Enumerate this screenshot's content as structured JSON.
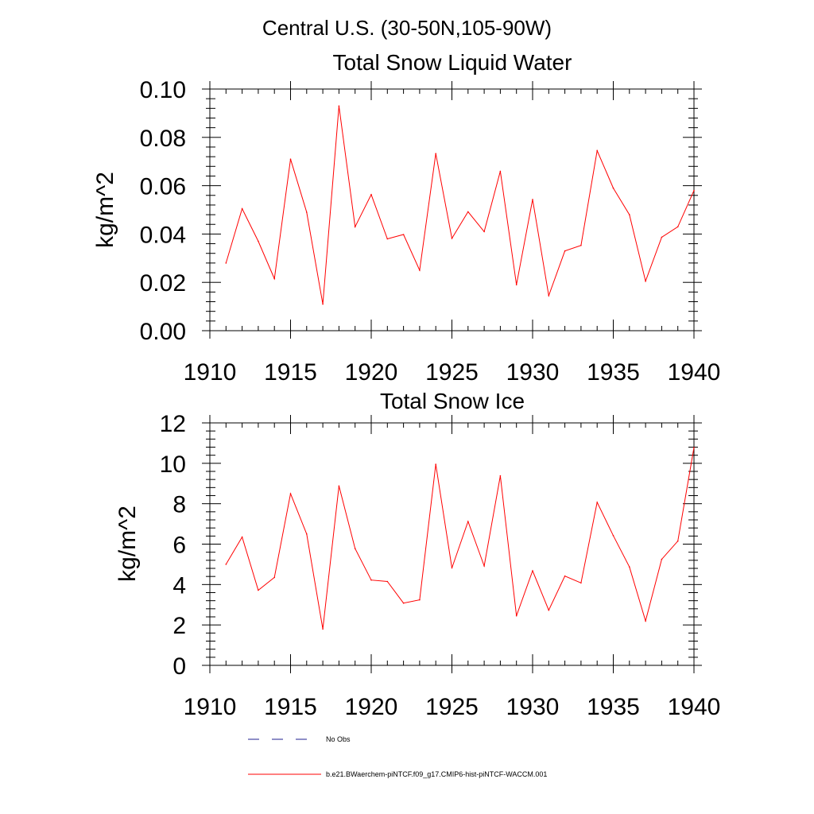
{
  "header": {
    "title": "Central U.S. (30-50N,105-90W)"
  },
  "legend": {
    "entries": [
      {
        "label": "No Obs",
        "color": "#1f1f8f",
        "style": "dashed"
      },
      {
        "label": "b.e21.BWaerchem-piNTCF.f09_g17.CMIP6-hist-piNTCF-WACCM.001",
        "color": "#ff0000",
        "style": "solid"
      }
    ]
  },
  "chart_data": [
    {
      "type": "line",
      "title": "Total Snow Liquid Water",
      "xlabel": "",
      "ylabel": "kg/m^2",
      "xlim": [
        1910,
        1940
      ],
      "ylim": [
        0,
        0.1
      ],
      "xticks": [
        1910,
        1915,
        1920,
        1925,
        1930,
        1935,
        1940
      ],
      "yticks": [
        0.0,
        0.02,
        0.04,
        0.06,
        0.08,
        0.1
      ],
      "ytick_labels": [
        "0.00",
        "0.02",
        "0.04",
        "0.06",
        "0.08",
        "0.10"
      ],
      "grid": false,
      "x": [
        1911,
        1912,
        1913,
        1914,
        1915,
        1916,
        1917,
        1918,
        1919,
        1920,
        1921,
        1922,
        1923,
        1924,
        1925,
        1926,
        1927,
        1928,
        1929,
        1930,
        1931,
        1932,
        1933,
        1934,
        1935,
        1936,
        1937,
        1938,
        1939,
        1940
      ],
      "series": [
        {
          "name": "b.e21.BWaerchem-piNTCF.f09_g17.CMIP6-hist-piNTCF-WACCM.001",
          "color": "#ff0000",
          "values": [
            0.028,
            0.0505,
            0.037,
            0.0215,
            0.071,
            0.049,
            0.011,
            0.093,
            0.043,
            0.0563,
            0.038,
            0.0398,
            0.025,
            0.0733,
            0.0382,
            0.0492,
            0.041,
            0.066,
            0.019,
            0.0543,
            0.0145,
            0.033,
            0.0353,
            0.0745,
            0.059,
            0.048,
            0.0205,
            0.0387,
            0.043,
            0.058
          ]
        }
      ]
    },
    {
      "type": "line",
      "title": "Total Snow Ice",
      "xlabel": "",
      "ylabel": "kg/m^2",
      "xlim": [
        1910,
        1940
      ],
      "ylim": [
        0,
        12
      ],
      "xticks": [
        1910,
        1915,
        1920,
        1925,
        1930,
        1935,
        1940
      ],
      "yticks": [
        0,
        2,
        4,
        6,
        8,
        10,
        12
      ],
      "ytick_labels": [
        "0",
        "2",
        "4",
        "6",
        "8",
        "10",
        "12"
      ],
      "grid": false,
      "x": [
        1911,
        1912,
        1913,
        1914,
        1915,
        1916,
        1917,
        1918,
        1919,
        1920,
        1921,
        1922,
        1923,
        1924,
        1925,
        1926,
        1927,
        1928,
        1929,
        1930,
        1931,
        1932,
        1933,
        1934,
        1935,
        1936,
        1937,
        1938,
        1939,
        1940
      ],
      "series": [
        {
          "name": "b.e21.BWaerchem-piNTCF.f09_g17.CMIP6-hist-piNTCF-WACCM.001",
          "color": "#ff0000",
          "values": [
            5.0,
            6.35,
            3.72,
            4.35,
            8.5,
            6.5,
            1.8,
            8.88,
            5.78,
            4.22,
            4.15,
            3.08,
            3.24,
            9.95,
            4.82,
            7.12,
            4.92,
            9.38,
            2.45,
            4.68,
            2.73,
            4.42,
            4.08,
            8.07,
            6.42,
            4.87,
            2.2,
            5.25,
            6.15,
            10.78
          ]
        }
      ]
    }
  ]
}
